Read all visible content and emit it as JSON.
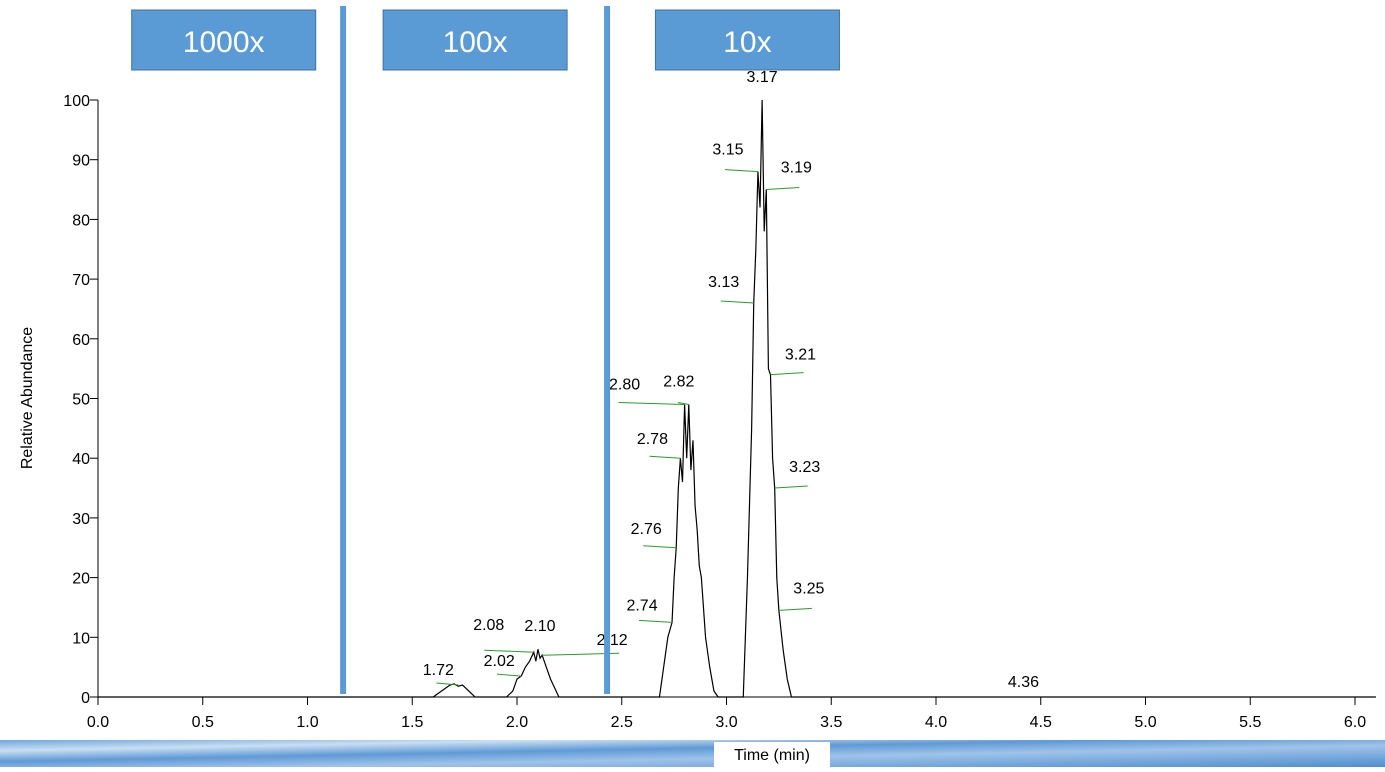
{
  "chart_data": {
    "type": "line",
    "x_label": "Time (min)",
    "y_label": "Relative Abundance",
    "xlim": [
      0,
      6.1
    ],
    "ylim": [
      0,
      100
    ],
    "xticks": [
      {
        "value": 0,
        "label": "0.0"
      },
      0.5,
      {
        "value": 1,
        "label": "1.0"
      },
      1.5,
      {
        "value": 2,
        "label": "2.0"
      },
      2.5,
      {
        "value": 3,
        "label": "3.0"
      },
      3.5,
      {
        "value": 4,
        "label": "4.0"
      },
      4.5,
      {
        "value": 5,
        "label": "5.0"
      },
      5.5,
      {
        "value": 6,
        "label": "6.0"
      }
    ],
    "yticks": [
      0,
      10,
      20,
      30,
      40,
      50,
      60,
      70,
      80,
      90,
      100
    ],
    "series": [
      {
        "color": "#000000",
        "x": [
          0,
          1.6,
          1.64,
          1.68,
          1.7,
          1.72,
          1.74,
          1.77,
          1.8,
          1.95,
          1.98,
          2.0,
          2.02,
          2.04,
          2.06,
          2.08,
          2.09,
          2.1,
          2.11,
          2.12,
          2.14,
          2.16,
          2.18,
          2.2,
          2.68,
          2.7,
          2.72,
          2.74,
          2.75,
          2.76,
          2.77,
          2.78,
          2.79,
          2.8,
          2.81,
          2.82,
          2.83,
          2.84,
          2.85,
          2.86,
          2.87,
          2.88,
          2.9,
          2.92,
          2.94,
          2.96,
          3.08,
          3.1,
          3.12,
          3.13,
          3.14,
          3.15,
          3.16,
          3.17,
          3.18,
          3.19,
          3.2,
          3.21,
          3.22,
          3.23,
          3.24,
          3.25,
          3.27,
          3.29,
          3.31,
          6.1
        ],
        "values": [
          0,
          0,
          1,
          2,
          2.2,
          1.8,
          2,
          1,
          0,
          0,
          1,
          3,
          3.5,
          5,
          6,
          7.5,
          6,
          8,
          6.5,
          7,
          5,
          3,
          1.5,
          0,
          0,
          5,
          10,
          12.5,
          20,
          25,
          35,
          40,
          36,
          49,
          40,
          49,
          38,
          43,
          32,
          28,
          22,
          20,
          10,
          5,
          1,
          0,
          0,
          20,
          45,
          66,
          75,
          88,
          82,
          100,
          78,
          85,
          55,
          54,
          40,
          35,
          20,
          14.5,
          8,
          3,
          0,
          0
        ]
      }
    ],
    "annotations": [
      {
        "label": "1.72",
        "x": 1.72,
        "y": 2
      },
      {
        "label": "2.02",
        "x": 2.02,
        "y": 3.5
      },
      {
        "label": "2.08",
        "x": 2.08,
        "y": 7.5
      },
      {
        "label": "2.10",
        "x": 2.1,
        "y": 8
      },
      {
        "label": "2.12",
        "x": 2.12,
        "y": 7
      },
      {
        "label": "2.74",
        "x": 2.74,
        "y": 12.5
      },
      {
        "label": "2.76",
        "x": 2.76,
        "y": 25
      },
      {
        "label": "2.78",
        "x": 2.78,
        "y": 40
      },
      {
        "label": "2.80",
        "x": 2.8,
        "y": 49
      },
      {
        "label": "2.82",
        "x": 2.82,
        "y": 49
      },
      {
        "label": "3.13",
        "x": 3.13,
        "y": 66
      },
      {
        "label": "3.15",
        "x": 3.15,
        "y": 88
      },
      {
        "label": "3.17",
        "x": 3.17,
        "y": 100
      },
      {
        "label": "3.19",
        "x": 3.19,
        "y": 85
      },
      {
        "label": "3.21",
        "x": 3.21,
        "y": 54
      },
      {
        "label": "3.23",
        "x": 3.23,
        "y": 35
      },
      {
        "label": "3.25",
        "x": 3.25,
        "y": 14.5
      },
      {
        "label": "4.36",
        "x": 4.36,
        "y": 0
      }
    ],
    "dividers": [
      1.17,
      2.43
    ],
    "regions": [
      {
        "label": "1000x",
        "x": 0.6
      },
      {
        "label": "100x",
        "x": 1.8
      },
      {
        "label": "10x",
        "x": 3.1
      }
    ]
  }
}
